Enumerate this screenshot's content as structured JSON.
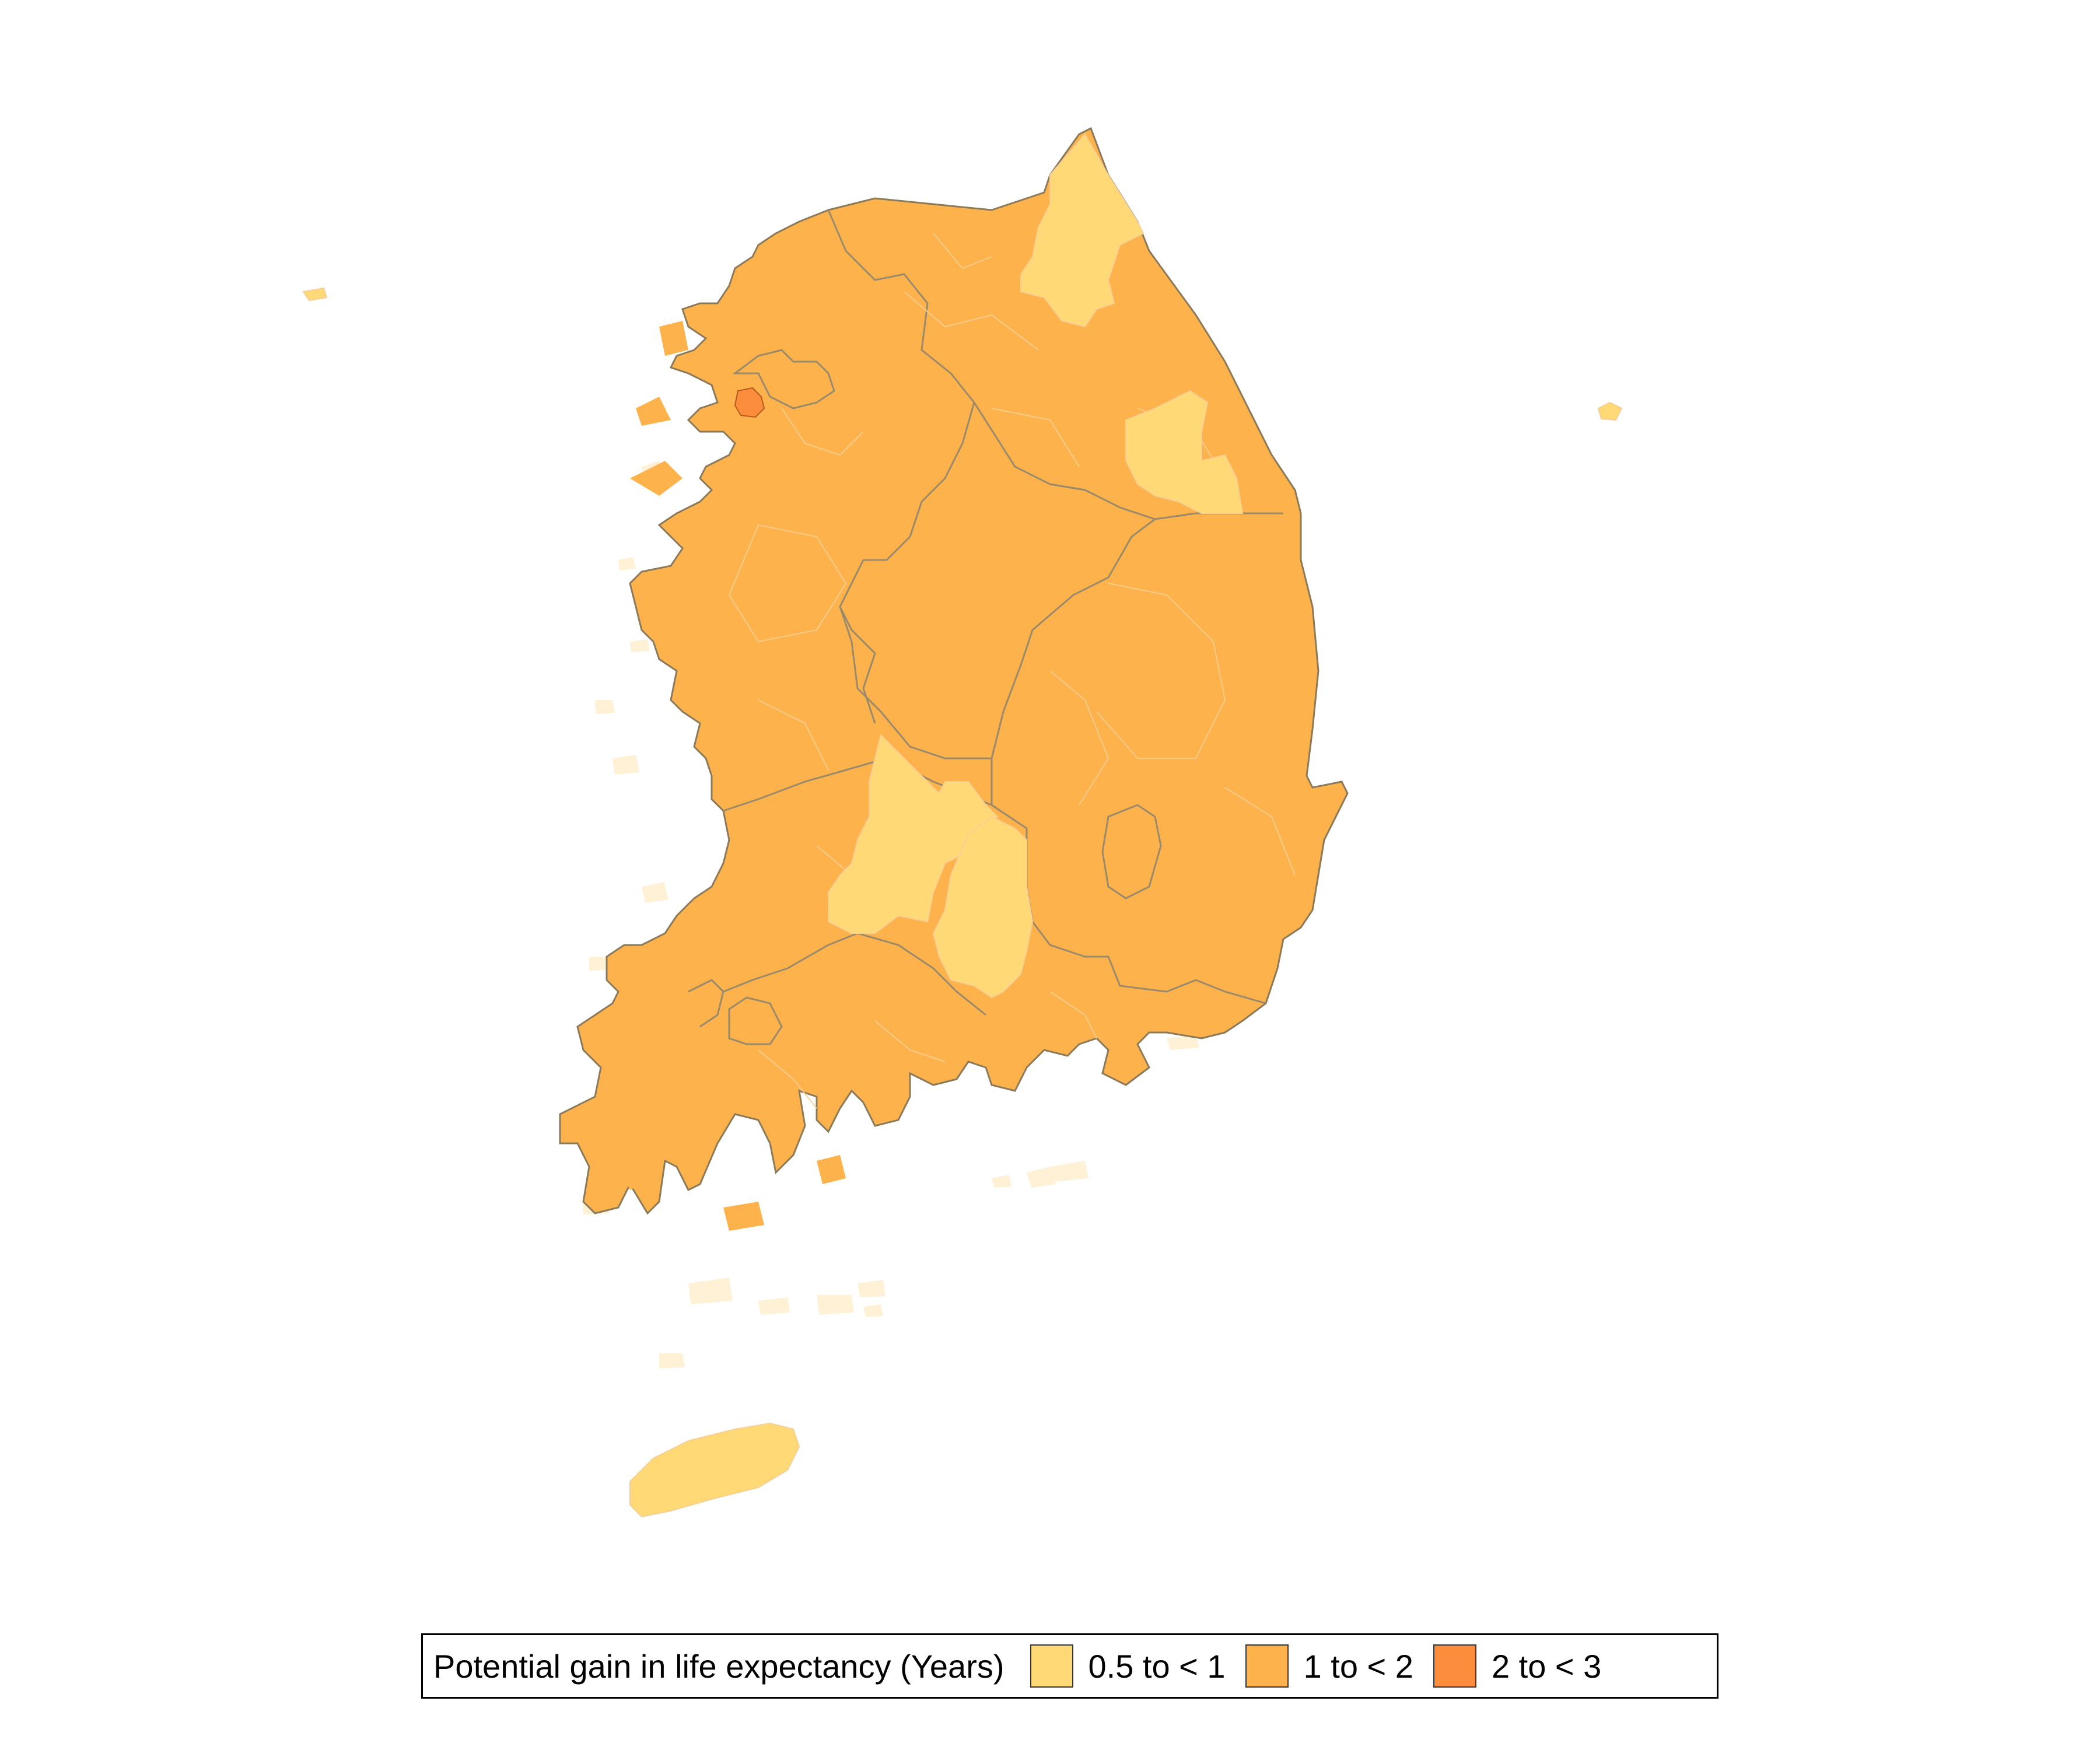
{
  "legend": {
    "title": "Potential gain in life expectancy (Years)",
    "items": [
      {
        "label": "0.5 to < 1",
        "color": "#FED976"
      },
      {
        "label": "1 to < 2",
        "color": "#FDB24C"
      },
      {
        "label": "2 to < 3",
        "color": "#FC8D3C"
      }
    ]
  },
  "colors": {
    "border_major": "#8a7a5a",
    "border_minor": "#f5c98a",
    "islets": "#FFF1D6",
    "background": "#ffffff"
  }
}
